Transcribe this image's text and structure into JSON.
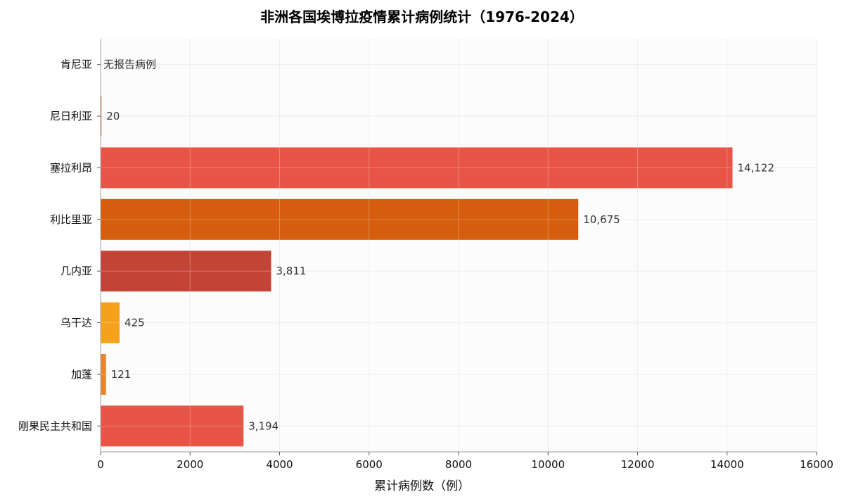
{
  "chart_data": {
    "type": "bar",
    "orientation": "horizontal",
    "title": "非洲各国埃博拉疫情累计病例统计（1976-2024）",
    "xlabel": "累计病例数（例）",
    "ylabel": "",
    "xlim": [
      0,
      16000
    ],
    "xticks": [
      0,
      2000,
      4000,
      6000,
      8000,
      10000,
      12000,
      14000,
      16000
    ],
    "grid": true,
    "categories": [
      "肯尼亚",
      "尼日利亚",
      "塞拉利昂",
      "利比里亚",
      "几内亚",
      "乌干达",
      "加蓬",
      "刚果民主共和国"
    ],
    "values": [
      0,
      20,
      14122,
      10675,
      3811,
      425,
      121,
      3194
    ],
    "value_labels": [
      "无报告病例",
      "20",
      "14,122",
      "10,675",
      "3,811",
      "425",
      "121",
      "3,194"
    ],
    "colors": [
      "#e74c3c",
      "#e74c3c",
      "#e74c3c",
      "#d35400",
      "#c0392b",
      "#f39c12",
      "#e67e22",
      "#e74c3c"
    ]
  }
}
